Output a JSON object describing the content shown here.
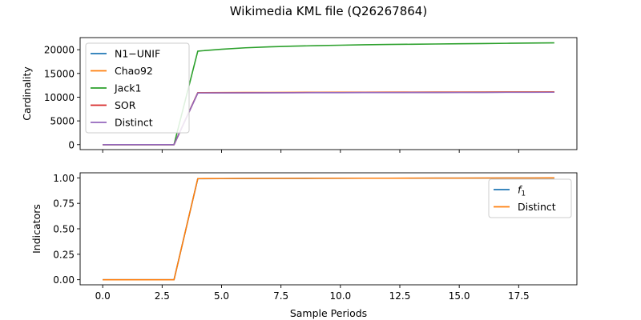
{
  "figure": {
    "title": "Wikimedia KML file (Q26267864)"
  },
  "chart_data": [
    {
      "type": "line",
      "ylabel": "Cardinality",
      "xlabel": "",
      "xlim": [
        -0.95,
        19.95
      ],
      "ylim": [
        -1050,
        22550
      ],
      "x": [
        0,
        1,
        2,
        3,
        4,
        5,
        6,
        7,
        8,
        9,
        10,
        11,
        12,
        13,
        14,
        15,
        16,
        17,
        18,
        19
      ],
      "xticks": [
        0.0,
        2.5,
        5.0,
        7.5,
        10.0,
        12.5,
        15.0,
        17.5
      ],
      "xtick_labels_visible": false,
      "yticks": [
        0,
        5000,
        10000,
        15000,
        20000
      ],
      "ytick_labels": [
        "0",
        "5000",
        "10000",
        "15000",
        "20000"
      ],
      "legend_loc": "upper-left",
      "grid": false,
      "series": [
        {
          "name": "N1−UNIF",
          "color": "#1f77b4",
          "values": [
            0,
            0,
            0,
            0,
            10900,
            10920,
            10940,
            10950,
            10960,
            10970,
            10980,
            10990,
            11000,
            11010,
            11020,
            11030,
            11040,
            11050,
            11060,
            11070
          ]
        },
        {
          "name": "Chao92",
          "color": "#ff7f0e",
          "values": [
            0,
            0,
            0,
            0,
            10950,
            10970,
            10990,
            11000,
            11010,
            11020,
            11030,
            11040,
            11050,
            11060,
            11070,
            11080,
            11090,
            11100,
            11110,
            11120
          ]
        },
        {
          "name": "Jack1",
          "color": "#2ca02c",
          "values": [
            0,
            0,
            0,
            0,
            19700,
            20100,
            20400,
            20600,
            20750,
            20850,
            20950,
            21050,
            21100,
            21150,
            21200,
            21250,
            21300,
            21350,
            21400,
            21450
          ]
        },
        {
          "name": "SOR",
          "color": "#d62728",
          "values": [
            0,
            0,
            0,
            0,
            10900,
            10920,
            10940,
            10950,
            10960,
            10970,
            10980,
            10990,
            11000,
            11010,
            11020,
            11030,
            11040,
            11050,
            11060,
            11070
          ]
        },
        {
          "name": "Distinct",
          "color": "#9467bd",
          "values": [
            0,
            0,
            0,
            0,
            10880,
            10900,
            10915,
            10925,
            10935,
            10945,
            10955,
            10965,
            10975,
            10985,
            10995,
            11005,
            11015,
            11025,
            11035,
            11045
          ]
        }
      ]
    },
    {
      "type": "line",
      "ylabel": "Indicators",
      "xlabel": "Sample Periods",
      "xlim": [
        -0.95,
        19.95
      ],
      "ylim": [
        -0.05,
        1.05
      ],
      "x": [
        0,
        1,
        2,
        3,
        4,
        5,
        6,
        7,
        8,
        9,
        10,
        11,
        12,
        13,
        14,
        15,
        16,
        17,
        18,
        19
      ],
      "xticks": [
        0.0,
        2.5,
        5.0,
        7.5,
        10.0,
        12.5,
        15.0,
        17.5
      ],
      "xtick_labels": [
        "0.0",
        "2.5",
        "5.0",
        "7.5",
        "10.0",
        "12.5",
        "15.0",
        "17.5"
      ],
      "yticks": [
        0.0,
        0.25,
        0.5,
        0.75,
        1.0
      ],
      "ytick_labels": [
        "0.00",
        "0.25",
        "0.50",
        "0.75",
        "1.00"
      ],
      "legend_loc": "upper-right",
      "grid": false,
      "series": [
        {
          "name": "f1",
          "name_main": "f",
          "name_sub": "1",
          "color": "#1f77b4",
          "values": [
            0,
            0,
            0,
            0,
            0.992,
            0.993,
            0.994,
            0.995,
            0.995,
            0.996,
            0.996,
            0.997,
            0.997,
            0.997,
            0.998,
            0.998,
            0.998,
            0.999,
            0.999,
            0.999
          ]
        },
        {
          "name": "Distinct",
          "color": "#ff7f0e",
          "values": [
            0,
            0,
            0,
            0,
            0.993,
            0.994,
            0.995,
            0.995,
            0.996,
            0.996,
            0.997,
            0.997,
            0.997,
            0.998,
            0.998,
            0.998,
            0.999,
            0.999,
            0.999,
            1.0
          ]
        }
      ]
    }
  ]
}
